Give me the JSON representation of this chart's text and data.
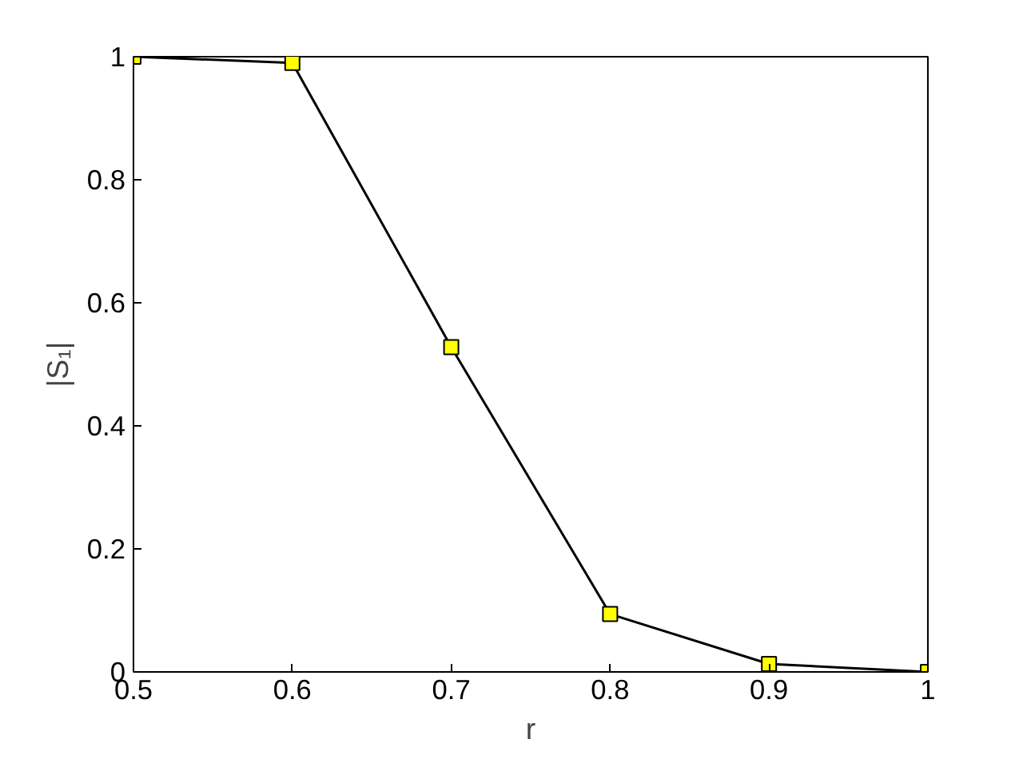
{
  "chart_data": {
    "type": "line",
    "xlabel": "r",
    "ylabel": "|S₁|",
    "x": [
      0.5,
      0.6,
      0.7,
      0.8,
      0.9,
      1.0
    ],
    "series": [
      {
        "color": "#000000",
        "values": [
          1.0,
          0.99,
          0.528,
          0.094,
          0.013,
          0.0
        ]
      }
    ],
    "xlim": [
      0.5,
      1.0
    ],
    "ylim": [
      0,
      1
    ],
    "xticks": [
      {
        "value": 0.5,
        "label": "0.5"
      },
      {
        "value": 0.6,
        "label": "0.6"
      },
      {
        "value": 0.7,
        "label": "0.7"
      },
      {
        "value": 0.8,
        "label": "0.8"
      },
      {
        "value": 0.9,
        "label": "0.9"
      },
      {
        "value": 1.0,
        "label": "1"
      }
    ],
    "yticks": [
      {
        "value": 0,
        "label": "0"
      },
      {
        "value": 0.2,
        "label": "0.2"
      },
      {
        "value": 0.4,
        "label": "0.4"
      },
      {
        "value": 0.6,
        "label": "0.6"
      },
      {
        "value": 0.8,
        "label": "0.8"
      },
      {
        "value": 1,
        "label": "1"
      }
    ],
    "marker": "square",
    "line_style": "solid",
    "grid": false
  }
}
